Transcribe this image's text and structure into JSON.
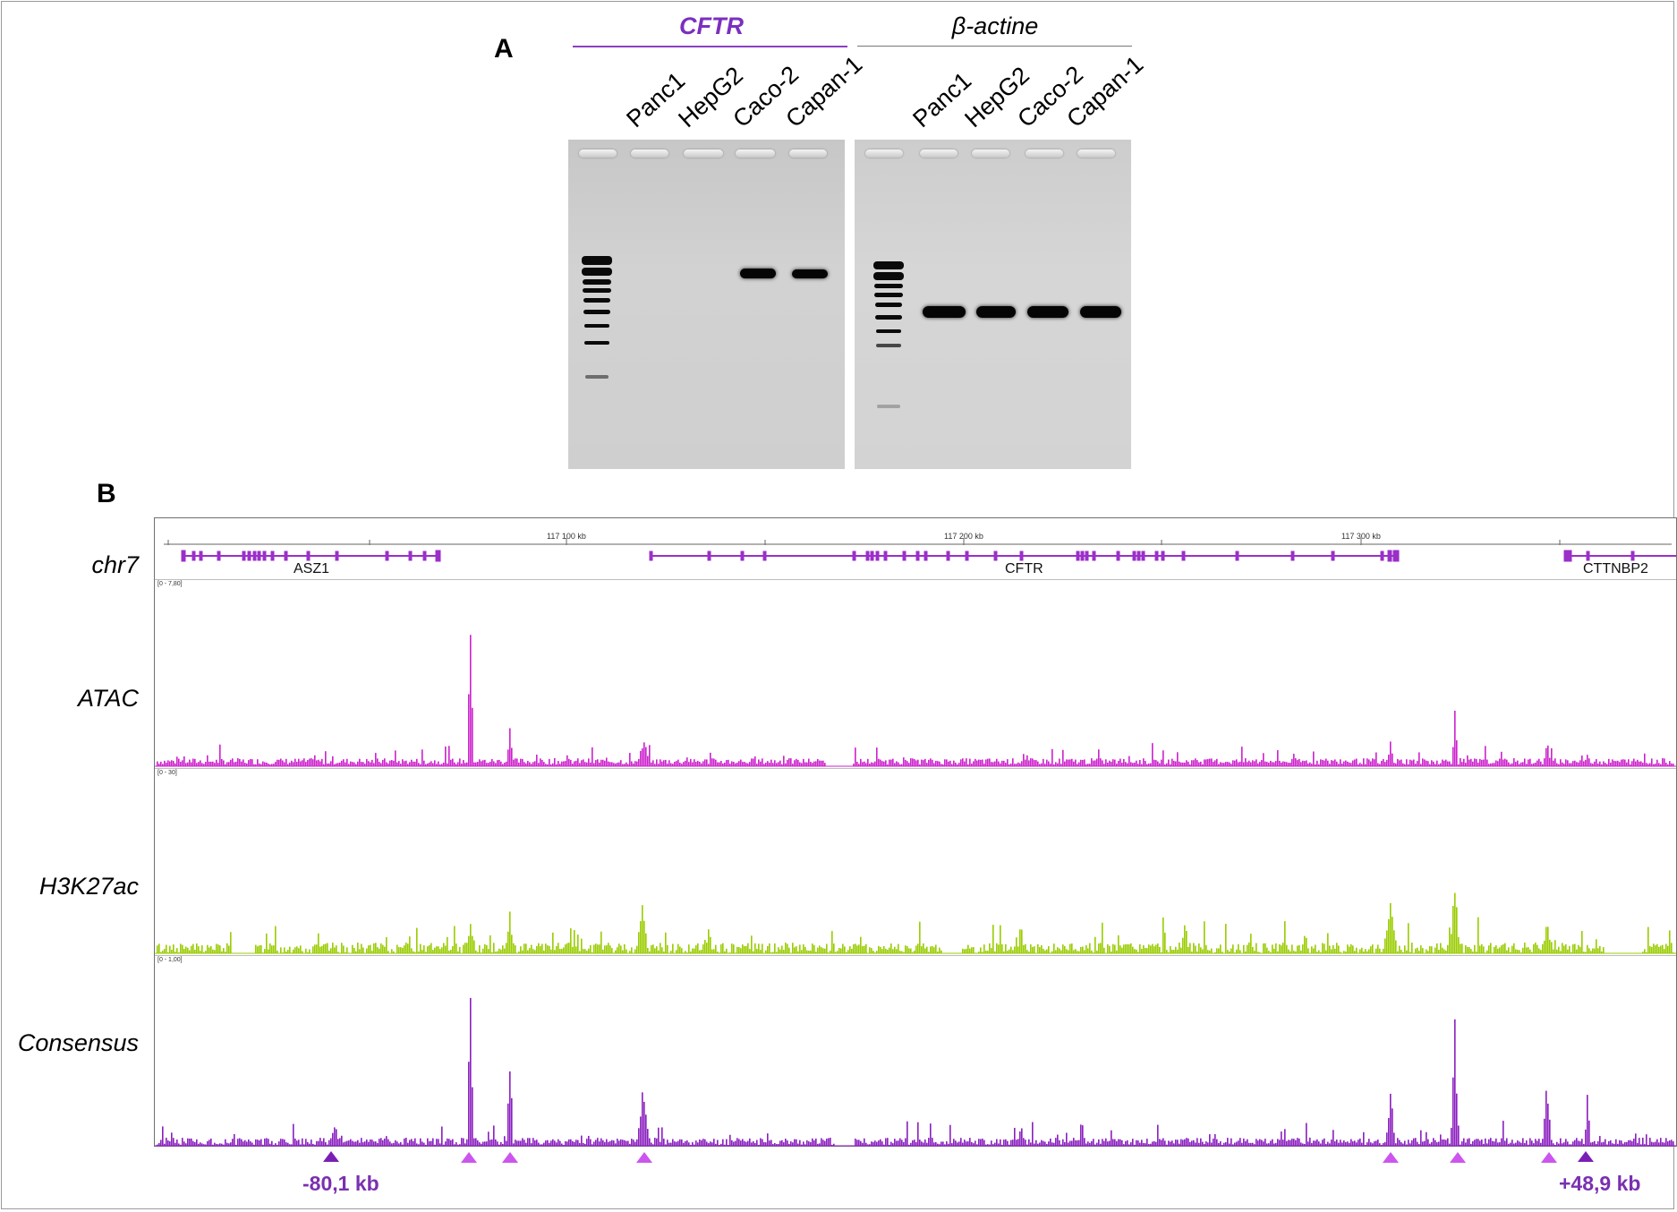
{
  "panelA": {
    "letter": "A",
    "gel1": {
      "title": "CFTR",
      "title_color": "#7b2fbf",
      "lanes": [
        "Panc1",
        "HepG2",
        "Caco-2",
        "Capan-1"
      ],
      "band_present": [
        false,
        false,
        true,
        true
      ]
    },
    "gel2": {
      "title": "β-actine",
      "title_color": "#000000",
      "lanes": [
        "Panc1",
        "HepG2",
        "Caco-2",
        "Capan-1"
      ],
      "band_present": [
        true,
        true,
        true,
        true
      ]
    }
  },
  "panelB": {
    "letter": "B",
    "ruler_ticks": [
      "117 100 kb",
      "117 200 kb",
      "117 300 kb"
    ],
    "chromosome": "chr7",
    "genes": [
      "ASZ1",
      "CFTR",
      "CTTNBP2"
    ],
    "tracks": [
      {
        "label": "ATAC",
        "range": "[0 - 7,80]",
        "color": "#cc22cc"
      },
      {
        "label": "H3K27ac",
        "range": "[0 - 30]",
        "color": "#99cc00"
      },
      {
        "label": "Consensus",
        "range": "[0 - 1,00]",
        "color": "#8a1fbf"
      }
    ],
    "markers": {
      "light_color": "#cc55ee",
      "dark_color": "#7a1fb5"
    },
    "kb_left": "-80,1 kb",
    "kb_right": "+48,9 kb",
    "kb_color": "#7a30b0"
  }
}
